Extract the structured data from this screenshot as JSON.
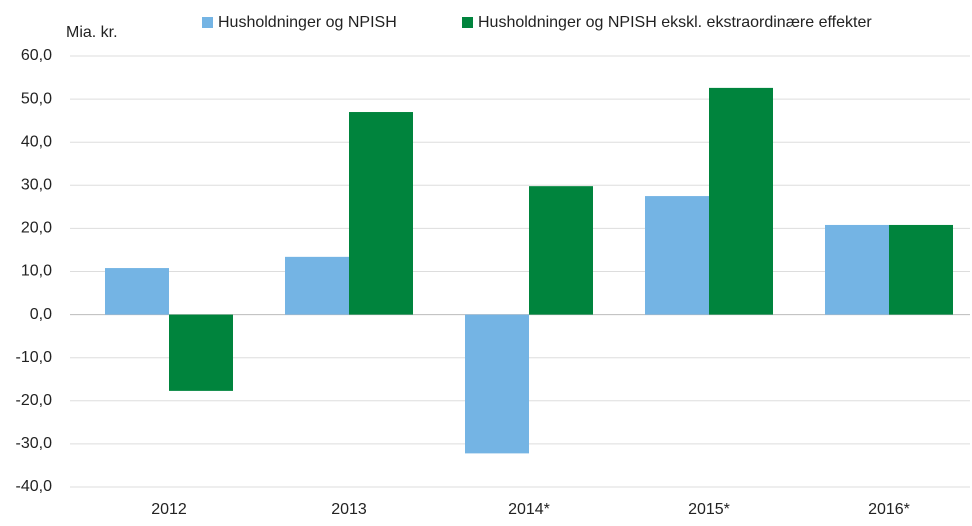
{
  "chart_data": {
    "type": "bar",
    "y_label": "Mia. kr.",
    "categories": [
      "2012",
      "2013",
      "2014*",
      "2015*",
      "2016*"
    ],
    "series": [
      {
        "name": "Husholdninger og NPISH",
        "color": "#74b4e4",
        "values": [
          10.8,
          13.4,
          -32.2,
          27.5,
          20.8
        ]
      },
      {
        "name": "Husholdninger og NPISH ekskl. ekstraordinære effekter",
        "color": "#00843d",
        "values": [
          -17.7,
          47.0,
          29.8,
          52.6,
          20.8
        ]
      }
    ],
    "ylim": [
      -40,
      60
    ],
    "yticks": [
      {
        "value": -40,
        "label": "-40,0"
      },
      {
        "value": -30,
        "label": "-30,0"
      },
      {
        "value": -20,
        "label": "-20,0"
      },
      {
        "value": -10,
        "label": "-10,0"
      },
      {
        "value": 0,
        "label": "0,0"
      },
      {
        "value": 10,
        "label": "10,0"
      },
      {
        "value": 20,
        "label": "20,0"
      },
      {
        "value": 30,
        "label": "30,0"
      },
      {
        "value": 40,
        "label": "40,0"
      },
      {
        "value": 50,
        "label": "50,0"
      },
      {
        "value": 60,
        "label": "60,0"
      }
    ],
    "grid": true,
    "legend": "top"
  }
}
